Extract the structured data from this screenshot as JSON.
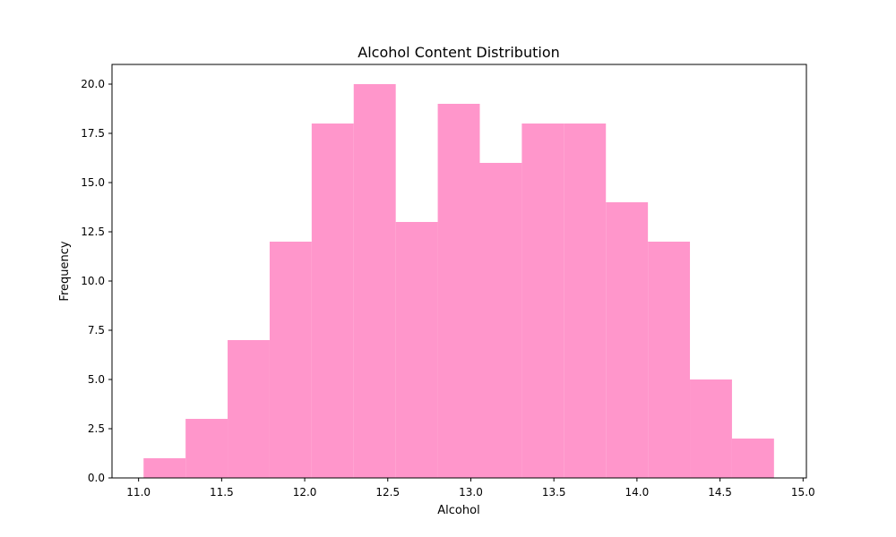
{
  "chart_data": {
    "type": "bar",
    "title": "Alcohol Content Distribution",
    "xlabel": "Alcohol",
    "ylabel": "Frequency",
    "bin_edges": [
      11.03,
      11.283,
      11.536,
      11.789,
      12.042,
      12.295,
      12.548,
      12.801,
      13.054,
      13.307,
      13.56,
      13.813,
      14.066,
      14.319,
      14.572,
      14.825
    ],
    "values": [
      1,
      3,
      7,
      12,
      18,
      20,
      13,
      19,
      16,
      18,
      18,
      14,
      12,
      5,
      2
    ],
    "xlim": [
      10.84,
      15.02
    ],
    "ylim": [
      0,
      21
    ],
    "xticks": [
      "11.0",
      "11.5",
      "12.0",
      "12.5",
      "13.0",
      "13.5",
      "14.0",
      "14.5",
      "15.0"
    ],
    "yticks": [
      "0.0",
      "2.5",
      "5.0",
      "7.5",
      "10.0",
      "12.5",
      "15.0",
      "17.5",
      "20.0"
    ],
    "bar_color": "#ff96cb",
    "grid": false,
    "legend": "none"
  }
}
